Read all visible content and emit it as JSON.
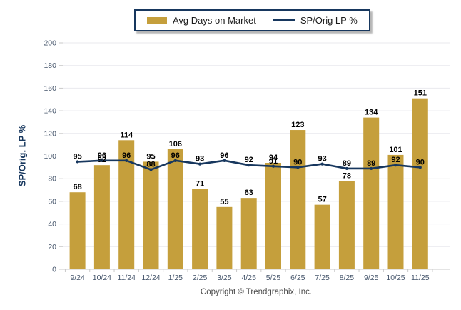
{
  "legend": {
    "bar_label": "Avg Days on Market",
    "line_label": "SP/Orig LP %"
  },
  "y_axis": {
    "title": "SP/Orig. LP %"
  },
  "footer": {
    "copyright": "Copyright © Trendgraphix, Inc."
  },
  "colors": {
    "bar": "#C59F3C",
    "line": "#17375E",
    "grid": "#E9E9EE",
    "axis": "#C9C9C9",
    "tick_text": "#44546A",
    "value_label": "#000000",
    "legend_border": "#17375E"
  },
  "chart_data": {
    "type": "bar",
    "title": "",
    "xlabel": "",
    "ylabel": "SP/Orig. LP %",
    "ylim": [
      0,
      200
    ],
    "ytick_step": 20,
    "grid": true,
    "legend_position": "top",
    "categories": [
      "9/24",
      "10/24",
      "11/24",
      "12/24",
      "1/25",
      "2/25",
      "3/25",
      "4/25",
      "5/25",
      "6/25",
      "7/25",
      "8/25",
      "9/25",
      "10/25",
      "11/25"
    ],
    "series": [
      {
        "name": "Avg Days on Market",
        "type": "bar",
        "values": [
          68,
          92,
          114,
          95,
          106,
          71,
          55,
          63,
          94,
          123,
          57,
          78,
          134,
          101,
          151
        ]
      },
      {
        "name": "SP/Orig LP %",
        "type": "line",
        "values": [
          95,
          96,
          96,
          88,
          96,
          93,
          96,
          92,
          91,
          90,
          93,
          89,
          89,
          92,
          90
        ]
      }
    ]
  }
}
